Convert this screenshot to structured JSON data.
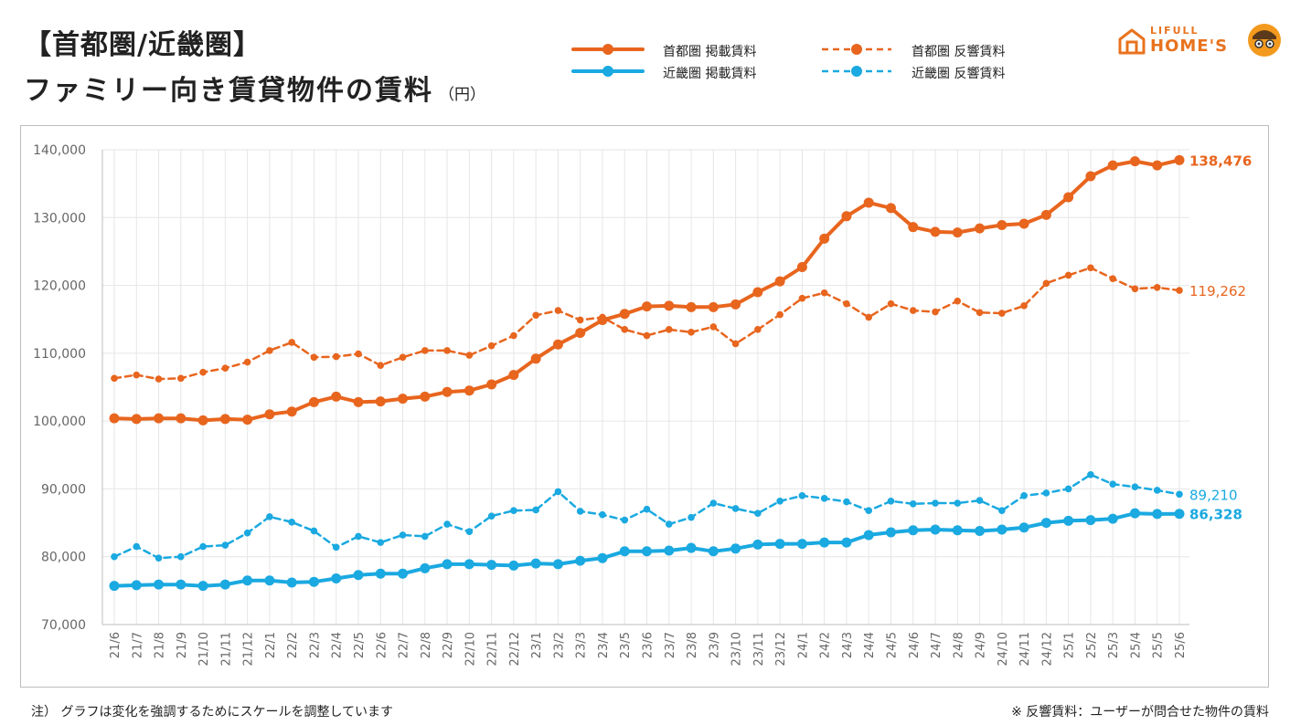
{
  "header": {
    "title_line1": "【首都圏/近畿圏】",
    "title_line2": "ファミリー向き賃貸物件の賃料",
    "unit": "（円）"
  },
  "logo": {
    "small": "LIFULL",
    "big": "HOME'S"
  },
  "legend": {
    "shuto_listing": "首都圏 掲載賃料",
    "kinki_listing": "近畿圏 掲載賃料",
    "shuto_response": "首都圏 反響賃料",
    "kinki_response": "近畿圏 反響賃料"
  },
  "footer": {
    "note": "注） グラフは変化を強調するためにスケールを調整しています",
    "definition": "※ 反響賃料：ユーザーが問合せた物件の賃料"
  },
  "colors": {
    "orange": "#e8651e",
    "blue": "#1aa9e0",
    "grid": "#e6e6e6",
    "axis_text": "#666666"
  },
  "chart_data": {
    "type": "line",
    "ylim": [
      70000,
      140000
    ],
    "yticks": [
      "70,000",
      "80,000",
      "90,000",
      "100,000",
      "110,000",
      "120,000",
      "130,000",
      "140,000"
    ],
    "grid": true,
    "categories": [
      "21/6",
      "21/7",
      "21/8",
      "21/9",
      "21/10",
      "21/11",
      "21/12",
      "22/1",
      "22/2",
      "22/3",
      "22/4",
      "22/5",
      "22/6",
      "22/7",
      "22/8",
      "22/9",
      "22/10",
      "22/11",
      "22/12",
      "23/1",
      "23/2",
      "23/3",
      "23/4",
      "23/5",
      "23/6",
      "23/7",
      "23/8",
      "23/9",
      "23/10",
      "23/11",
      "23/12",
      "24/1",
      "24/2",
      "24/3",
      "24/4",
      "24/5",
      "24/6",
      "24/7",
      "24/8",
      "24/9",
      "24/10",
      "24/11",
      "24/12",
      "25/1",
      "25/2",
      "25/3",
      "25/4",
      "25/5",
      "25/6"
    ],
    "series": [
      {
        "name": "首都圏 掲載賃料",
        "style": "solid",
        "color": "#e8651e",
        "end_label": "138,476",
        "values": [
          100400,
          100300,
          100400,
          100400,
          100100,
          100300,
          100200,
          101000,
          101400,
          102800,
          103600,
          102800,
          102900,
          103300,
          103600,
          104300,
          104500,
          105400,
          106800,
          109200,
          111300,
          113000,
          114900,
          115800,
          116900,
          117000,
          116800,
          116800,
          117200,
          119000,
          120600,
          122700,
          126900,
          130200,
          132200,
          131400,
          128600,
          127900,
          127800,
          128400,
          128900,
          129100,
          130400,
          133000,
          136100,
          137700,
          138300,
          137700,
          138476
        ]
      },
      {
        "name": "首都圏 反響賃料",
        "style": "dashed",
        "color": "#e8651e",
        "end_label": "119,262",
        "values": [
          106300,
          106800,
          106200,
          106300,
          107200,
          107800,
          108700,
          110400,
          111600,
          109400,
          109500,
          109900,
          108200,
          109400,
          110400,
          110400,
          109700,
          111100,
          112600,
          115600,
          116300,
          114900,
          115300,
          113500,
          112600,
          113500,
          113100,
          113900,
          111400,
          113500,
          115700,
          118100,
          118900,
          117300,
          115300,
          117300,
          116300,
          116100,
          117700,
          116000,
          115900,
          117000,
          120300,
          121500,
          122600,
          121000,
          119500,
          119700,
          119262
        ]
      },
      {
        "name": "近畿圏 掲載賃料",
        "style": "solid",
        "color": "#1aa9e0",
        "end_label": "86,328",
        "values": [
          75700,
          75800,
          75900,
          75900,
          75700,
          75900,
          76500,
          76500,
          76200,
          76300,
          76800,
          77300,
          77500,
          77500,
          78300,
          78900,
          78900,
          78800,
          78700,
          79000,
          78900,
          79400,
          79800,
          80800,
          80800,
          80900,
          81300,
          80800,
          81200,
          81800,
          81900,
          81900,
          82100,
          82100,
          83200,
          83600,
          83900,
          84000,
          83900,
          83800,
          84000,
          84300,
          85000,
          85300,
          85400,
          85600,
          86400,
          86300,
          86328
        ]
      },
      {
        "name": "近畿圏 反響賃料",
        "style": "dashed",
        "color": "#1aa9e0",
        "end_label": "89,210",
        "values": [
          80000,
          81500,
          79800,
          80000,
          81500,
          81700,
          83500,
          85900,
          85100,
          83800,
          81400,
          83000,
          82100,
          83200,
          83000,
          84800,
          83700,
          86000,
          86800,
          86900,
          89600,
          86700,
          86200,
          85400,
          87000,
          84800,
          85800,
          87900,
          87100,
          86400,
          88200,
          89000,
          88600,
          88100,
          86800,
          88200,
          87800,
          87900,
          87900,
          88300,
          86800,
          89000,
          89400,
          90000,
          92100,
          90700,
          90300,
          89800,
          89210
        ]
      }
    ]
  }
}
